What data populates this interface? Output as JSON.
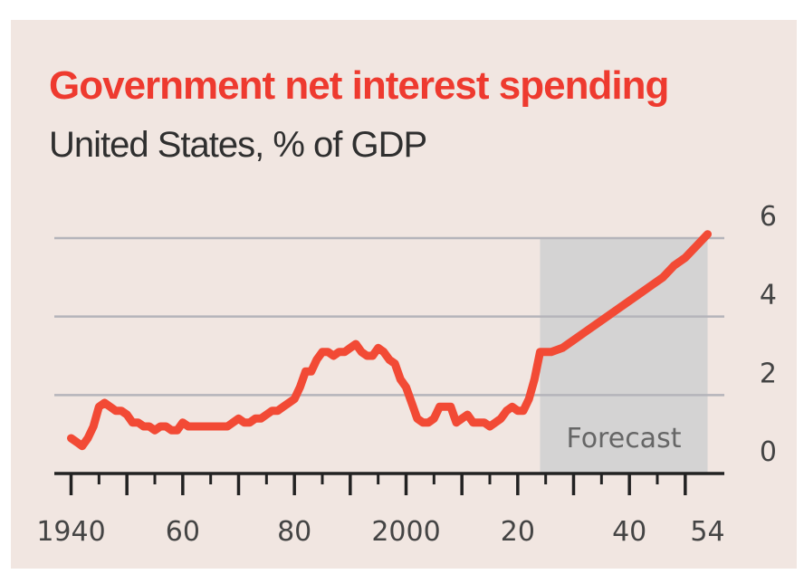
{
  "colors": {
    "background": "#f1e6e1",
    "title": "#ee3a2f",
    "line": "#f24a35",
    "grid": "#b5b4ba",
    "forecast_shade": "#d4d3d3",
    "axis": "#222222",
    "text": "#444444"
  },
  "chart_data": {
    "type": "line",
    "title": "Government net interest spending",
    "subtitle": "United States, % of GDP",
    "xlabel": "",
    "ylabel": "",
    "xlim": [
      1937,
      2057
    ],
    "ylim": [
      0,
      6
    ],
    "x_tick_labels": [
      {
        "x": 1940,
        "label": "1940"
      },
      {
        "x": 1960,
        "label": "60"
      },
      {
        "x": 1980,
        "label": "80"
      },
      {
        "x": 2000,
        "label": "2000"
      },
      {
        "x": 2020,
        "label": "20"
      },
      {
        "x": 2040,
        "label": "40"
      },
      {
        "x": 2054,
        "label": "54"
      }
    ],
    "x_major_ticks": [
      1940,
      1950,
      1960,
      1970,
      1980,
      1990,
      2000,
      2010,
      2020,
      2030,
      2040,
      2050
    ],
    "x_minor_ticks": [
      1945,
      1955,
      1965,
      1975,
      1985,
      1995,
      2005,
      2015,
      2025,
      2035,
      2045
    ],
    "y_ticks": [
      0,
      2,
      4,
      6
    ],
    "y_axis_side": "right",
    "grid": "horizontal",
    "annotation": {
      "label": "Forecast",
      "x_start": 2024,
      "x_end": 2054
    },
    "series": [
      {
        "x": [
          1940,
          1941,
          1942,
          1943,
          1944,
          1945,
          1946,
          1947,
          1948,
          1949,
          1950,
          1951,
          1952,
          1953,
          1954,
          1955,
          1956,
          1957,
          1958,
          1959,
          1960,
          1961,
          1962,
          1963,
          1964,
          1965,
          1966,
          1967,
          1968,
          1969,
          1970,
          1971,
          1972,
          1973,
          1974,
          1975,
          1976,
          1977,
          1978,
          1979,
          1980,
          1981,
          1982,
          1983,
          1984,
          1985,
          1986,
          1987,
          1988,
          1989,
          1990,
          1991,
          1992,
          1993,
          1994,
          1995,
          1996,
          1997,
          1998,
          1999,
          2000,
          2001,
          2002,
          2003,
          2004,
          2005,
          2006,
          2007,
          2008,
          2009,
          2010,
          2011,
          2012,
          2013,
          2014,
          2015,
          2016,
          2017,
          2018,
          2019,
          2020,
          2021,
          2022,
          2023,
          2024,
          2026,
          2028,
          2030,
          2032,
          2034,
          2036,
          2038,
          2040,
          2042,
          2044,
          2046,
          2048,
          2050,
          2052,
          2054
        ],
        "values": [
          0.9,
          0.8,
          0.7,
          0.9,
          1.2,
          1.7,
          1.8,
          1.7,
          1.6,
          1.6,
          1.5,
          1.3,
          1.3,
          1.2,
          1.2,
          1.1,
          1.2,
          1.2,
          1.1,
          1.1,
          1.3,
          1.2,
          1.2,
          1.2,
          1.2,
          1.2,
          1.2,
          1.2,
          1.2,
          1.3,
          1.4,
          1.3,
          1.3,
          1.4,
          1.4,
          1.5,
          1.6,
          1.6,
          1.7,
          1.8,
          1.9,
          2.2,
          2.6,
          2.6,
          2.9,
          3.1,
          3.1,
          3.0,
          3.1,
          3.1,
          3.2,
          3.3,
          3.1,
          3.0,
          3.0,
          3.2,
          3.1,
          2.9,
          2.8,
          2.4,
          2.2,
          1.8,
          1.4,
          1.3,
          1.3,
          1.4,
          1.7,
          1.7,
          1.7,
          1.3,
          1.4,
          1.5,
          1.3,
          1.3,
          1.3,
          1.2,
          1.3,
          1.4,
          1.6,
          1.7,
          1.6,
          1.6,
          1.9,
          2.4,
          3.1,
          3.1,
          3.2,
          3.4,
          3.6,
          3.8,
          4.0,
          4.2,
          4.4,
          4.6,
          4.8,
          5.0,
          5.3,
          5.5,
          5.8,
          6.1
        ]
      }
    ]
  }
}
